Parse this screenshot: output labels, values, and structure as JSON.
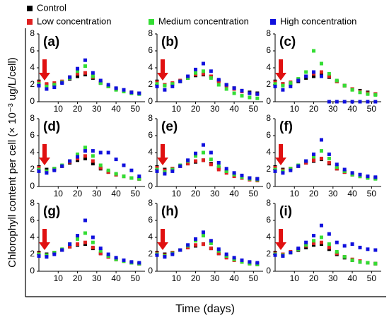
{
  "ylabel": "Chlorophyll content per cell (× 10⁻³ ug/L/cell)",
  "xlabel": "Time (days)",
  "chart_data": [
    {
      "type": "scatter",
      "label": "(a)",
      "x": [
        0,
        4,
        8,
        12,
        16,
        20,
        24,
        28,
        32,
        36,
        40,
        44,
        48,
        52
      ],
      "xlim": [
        0,
        55
      ],
      "ylim": [
        0,
        8
      ],
      "xticks": [
        10,
        20,
        30,
        40,
        50
      ],
      "yticks": [
        0,
        2,
        4,
        6,
        8
      ],
      "series": [
        {
          "name": "Control",
          "color": "#000000",
          "values": [
            2.4,
            2.0,
            2.0,
            2.3,
            2.7,
            3.0,
            3.2,
            2.8,
            2.2,
            1.8,
            1.5,
            1.3,
            1.1,
            1.0
          ]
        },
        {
          "name": "Low concentration",
          "color": "#e02020",
          "values": [
            2.3,
            2.1,
            2.2,
            2.4,
            2.9,
            3.3,
            3.4,
            2.9,
            2.3,
            1.8,
            1.5,
            1.3,
            1.1,
            1.0
          ]
        },
        {
          "name": "Medium concentration",
          "color": "#33dd33",
          "values": [
            2.1,
            1.8,
            2.0,
            2.3,
            2.8,
            3.6,
            4.2,
            3.0,
            2.2,
            1.8,
            1.4,
            1.2,
            1.0,
            0.9
          ]
        },
        {
          "name": "High concentration",
          "color": "#1010dd",
          "values": [
            1.9,
            1.5,
            1.7,
            2.2,
            2.9,
            3.9,
            4.9,
            3.4,
            2.5,
            2.0,
            1.6,
            1.4,
            1.1,
            1.0
          ]
        }
      ]
    },
    {
      "type": "scatter",
      "label": "(b)",
      "x": [
        0,
        4,
        8,
        12,
        16,
        20,
        24,
        28,
        32,
        36,
        40,
        44,
        48,
        52
      ],
      "xlim": [
        0,
        55
      ],
      "ylim": [
        0,
        8
      ],
      "xticks": [
        10,
        20,
        30,
        40,
        50
      ],
      "yticks": [
        0,
        2,
        4,
        6,
        8
      ],
      "series": [
        {
          "name": "Control",
          "color": "#000000",
          "values": [
            2.4,
            2.0,
            2.1,
            2.4,
            2.8,
            3.1,
            3.2,
            3.0,
            2.5,
            2.0,
            1.6,
            1.3,
            1.1,
            1.0
          ]
        },
        {
          "name": "Low concentration",
          "color": "#e02020",
          "values": [
            2.3,
            2.0,
            2.2,
            2.5,
            2.9,
            3.2,
            3.3,
            3.0,
            2.4,
            1.9,
            1.5,
            1.2,
            1.0,
            0.9
          ]
        },
        {
          "name": "Medium concentration",
          "color": "#33dd33",
          "values": [
            2.1,
            1.9,
            2.1,
            2.4,
            2.8,
            3.4,
            3.6,
            2.8,
            2.0,
            1.5,
            1.0,
            0.7,
            0.5,
            0.4
          ]
        },
        {
          "name": "High concentration",
          "color": "#1010dd",
          "values": [
            1.8,
            1.4,
            1.8,
            2.4,
            3.0,
            3.8,
            4.5,
            3.6,
            2.6,
            2.0,
            1.6,
            1.3,
            1.0,
            0.9
          ]
        }
      ]
    },
    {
      "type": "scatter",
      "label": "(c)",
      "x": [
        0,
        4,
        8,
        12,
        16,
        20,
        24,
        28,
        32,
        36,
        40,
        44,
        48,
        52
      ],
      "xlim": [
        0,
        55
      ],
      "ylim": [
        0,
        8
      ],
      "xticks": [
        10,
        20,
        30,
        40,
        50
      ],
      "yticks": [
        0,
        2,
        4,
        6,
        8
      ],
      "series": [
        {
          "name": "Control",
          "color": "#000000",
          "values": [
            2.4,
            2.1,
            2.1,
            2.4,
            2.8,
            3.0,
            3.2,
            2.9,
            2.4,
            1.9,
            1.5,
            1.3,
            1.1,
            0.9
          ]
        },
        {
          "name": "Low concentration",
          "color": "#e02020",
          "values": [
            2.3,
            2.1,
            2.3,
            2.6,
            3.0,
            3.3,
            3.5,
            3.0,
            2.4,
            1.9,
            1.5,
            1.2,
            1.0,
            0.9
          ]
        },
        {
          "name": "Medium concentration",
          "color": "#33dd33",
          "values": [
            2.1,
            1.9,
            2.2,
            2.7,
            3.5,
            6.0,
            4.5,
            3.3,
            2.5,
            1.9,
            1.4,
            1.1,
            0.9,
            0.8
          ]
        },
        {
          "name": "High concentration",
          "color": "#1010dd",
          "values": [
            1.8,
            1.4,
            1.8,
            2.5,
            3.0,
            3.5,
            3.0,
            0,
            0,
            0,
            0,
            0,
            0,
            0
          ]
        }
      ]
    },
    {
      "type": "scatter",
      "label": "(d)",
      "x": [
        0,
        4,
        8,
        12,
        16,
        20,
        24,
        28,
        32,
        36,
        40,
        44,
        48,
        52
      ],
      "xlim": [
        0,
        55
      ],
      "ylim": [
        0,
        8
      ],
      "xticks": [
        10,
        20,
        30,
        40,
        50
      ],
      "yticks": [
        0,
        2,
        4,
        6,
        8
      ],
      "series": [
        {
          "name": "Control",
          "color": "#000000",
          "values": [
            2.3,
            2.0,
            2.1,
            2.4,
            2.8,
            3.1,
            3.3,
            2.7,
            2.1,
            1.7,
            1.4,
            1.2,
            1.0,
            0.9
          ]
        },
        {
          "name": "Low concentration",
          "color": "#e02020",
          "values": [
            2.2,
            1.8,
            2.0,
            2.4,
            2.9,
            3.3,
            3.6,
            3.0,
            2.2,
            1.7,
            1.4,
            1.2,
            1.0,
            0.9
          ]
        },
        {
          "name": "Medium concentration",
          "color": "#33dd33",
          "values": [
            2.0,
            1.8,
            2.1,
            2.5,
            3.0,
            3.8,
            4.6,
            3.6,
            2.5,
            1.9,
            1.5,
            1.2,
            1.0,
            0.9
          ]
        },
        {
          "name": "High concentration",
          "color": "#1010dd",
          "values": [
            1.8,
            1.6,
            1.9,
            2.4,
            3.0,
            3.5,
            4.2,
            4.2,
            4.0,
            4.0,
            3.2,
            2.5,
            1.9,
            1.2
          ]
        }
      ]
    },
    {
      "type": "scatter",
      "label": "(e)",
      "x": [
        0,
        4,
        8,
        12,
        16,
        20,
        24,
        28,
        32,
        36,
        40,
        44,
        48,
        52
      ],
      "xlim": [
        0,
        55
      ],
      "ylim": [
        0,
        8
      ],
      "xticks": [
        10,
        20,
        30,
        40,
        50
      ],
      "yticks": [
        0,
        2,
        4,
        6,
        8
      ],
      "series": [
        {
          "name": "Control",
          "color": "#000000",
          "values": [
            2.3,
            2.0,
            2.1,
            2.4,
            2.7,
            2.9,
            3.1,
            2.7,
            2.2,
            1.8,
            1.4,
            1.2,
            1.0,
            0.9
          ]
        },
        {
          "name": "Low concentration",
          "color": "#e02020",
          "values": [
            2.2,
            1.9,
            2.1,
            2.4,
            2.7,
            3.0,
            3.1,
            2.6,
            2.0,
            1.6,
            1.2,
            1.0,
            0.8,
            0.7
          ]
        },
        {
          "name": "Medium concentration",
          "color": "#33dd33",
          "values": [
            2.0,
            1.7,
            2.0,
            2.5,
            3.0,
            3.6,
            4.0,
            3.2,
            2.4,
            1.8,
            1.4,
            1.1,
            0.9,
            0.8
          ]
        },
        {
          "name": "High concentration",
          "color": "#1010dd",
          "values": [
            1.8,
            1.5,
            1.8,
            2.4,
            3.1,
            3.9,
            4.9,
            4.0,
            2.8,
            2.1,
            1.6,
            1.3,
            1.0,
            0.9
          ]
        }
      ]
    },
    {
      "type": "scatter",
      "label": "(f)",
      "x": [
        0,
        4,
        8,
        12,
        16,
        20,
        24,
        28,
        32,
        36,
        40,
        44,
        48,
        52
      ],
      "xlim": [
        0,
        55
      ],
      "ylim": [
        0,
        8
      ],
      "xticks": [
        10,
        20,
        30,
        40,
        50
      ],
      "yticks": [
        0,
        2,
        4,
        6,
        8
      ],
      "series": [
        {
          "name": "Control",
          "color": "#000000",
          "values": [
            2.3,
            2.0,
            2.1,
            2.4,
            2.8,
            3.0,
            3.2,
            2.7,
            2.1,
            1.7,
            1.4,
            1.2,
            1.1,
            1.0
          ]
        },
        {
          "name": "Low concentration",
          "color": "#e02020",
          "values": [
            2.2,
            1.9,
            2.1,
            2.4,
            2.8,
            3.1,
            3.3,
            2.8,
            2.1,
            1.7,
            1.4,
            1.2,
            1.1,
            1.0
          ]
        },
        {
          "name": "Medium concentration",
          "color": "#33dd33",
          "values": [
            2.0,
            1.8,
            2.1,
            2.5,
            3.0,
            3.5,
            4.2,
            3.3,
            2.3,
            1.8,
            1.4,
            1.2,
            1.0,
            0.9
          ]
        },
        {
          "name": "High concentration",
          "color": "#1010dd",
          "values": [
            1.8,
            1.6,
            1.9,
            2.4,
            3.0,
            3.8,
            5.5,
            3.8,
            2.6,
            2.0,
            1.6,
            1.4,
            1.2,
            1.1
          ]
        }
      ]
    },
    {
      "type": "scatter",
      "label": "(g)",
      "x": [
        0,
        4,
        8,
        12,
        16,
        20,
        24,
        28,
        32,
        36,
        40,
        44,
        48,
        52
      ],
      "xlim": [
        0,
        55
      ],
      "ylim": [
        0,
        8
      ],
      "xticks": [
        10,
        20,
        30,
        40,
        50
      ],
      "yticks": [
        0,
        2,
        4,
        6,
        8
      ],
      "series": [
        {
          "name": "Control",
          "color": "#000000",
          "values": [
            2.2,
            2.0,
            2.2,
            2.5,
            2.9,
            3.1,
            3.2,
            2.7,
            2.1,
            1.7,
            1.4,
            1.2,
            1.0,
            0.9
          ]
        },
        {
          "name": "Low concentration",
          "color": "#e02020",
          "values": [
            2.1,
            1.9,
            2.2,
            2.5,
            2.9,
            3.2,
            3.4,
            2.8,
            2.1,
            1.7,
            1.4,
            1.2,
            1.0,
            0.9
          ]
        },
        {
          "name": "Medium concentration",
          "color": "#33dd33",
          "values": [
            2.0,
            1.9,
            2.2,
            2.6,
            3.2,
            3.8,
            4.5,
            3.4,
            2.4,
            1.8,
            1.4,
            1.2,
            1.0,
            0.9
          ]
        },
        {
          "name": "High concentration",
          "color": "#1010dd",
          "values": [
            1.8,
            1.7,
            2.0,
            2.5,
            3.2,
            4.2,
            6.0,
            4.0,
            2.7,
            2.0,
            1.6,
            1.3,
            1.1,
            1.0
          ]
        }
      ]
    },
    {
      "type": "scatter",
      "label": "(h)",
      "x": [
        0,
        4,
        8,
        12,
        16,
        20,
        24,
        28,
        32,
        36,
        40,
        44,
        48,
        52
      ],
      "xlim": [
        0,
        55
      ],
      "ylim": [
        0,
        8
      ],
      "xticks": [
        10,
        20,
        30,
        40,
        50
      ],
      "yticks": [
        0,
        2,
        4,
        6,
        8
      ],
      "series": [
        {
          "name": "Control",
          "color": "#000000",
          "values": [
            2.2,
            2.0,
            2.2,
            2.5,
            2.8,
            3.0,
            3.2,
            2.7,
            2.1,
            1.7,
            1.4,
            1.2,
            1.0,
            0.9
          ]
        },
        {
          "name": "Low concentration",
          "color": "#e02020",
          "values": [
            2.1,
            1.9,
            2.2,
            2.5,
            2.8,
            3.1,
            3.2,
            2.7,
            2.1,
            1.6,
            1.3,
            1.1,
            0.9,
            0.8
          ]
        },
        {
          "name": "Medium concentration",
          "color": "#33dd33",
          "values": [
            2.0,
            1.8,
            2.1,
            2.5,
            3.0,
            3.6,
            4.2,
            3.3,
            2.4,
            1.8,
            1.4,
            1.1,
            0.9,
            0.8
          ]
        },
        {
          "name": "High concentration",
          "color": "#1010dd",
          "values": [
            1.9,
            1.7,
            2.0,
            2.5,
            3.1,
            3.8,
            4.6,
            3.6,
            2.6,
            2.0,
            1.6,
            1.3,
            1.1,
            1.0
          ]
        }
      ]
    },
    {
      "type": "scatter",
      "label": "(i)",
      "x": [
        0,
        4,
        8,
        12,
        16,
        20,
        24,
        28,
        32,
        36,
        40,
        44,
        48,
        52
      ],
      "xlim": [
        0,
        55
      ],
      "ylim": [
        0,
        8
      ],
      "xticks": [
        10,
        20,
        30,
        40,
        50
      ],
      "yticks": [
        0,
        2,
        4,
        6,
        8
      ],
      "series": [
        {
          "name": "Control",
          "color": "#000000",
          "values": [
            2.2,
            2.0,
            2.2,
            2.5,
            2.8,
            3.1,
            3.2,
            2.6,
            2.0,
            1.6,
            1.3,
            1.1,
            1.0,
            0.9
          ]
        },
        {
          "name": "Low concentration",
          "color": "#e02020",
          "values": [
            2.1,
            2.0,
            2.3,
            2.6,
            3.0,
            3.3,
            3.4,
            2.8,
            2.1,
            1.7,
            1.4,
            1.2,
            1.0,
            0.9
          ]
        },
        {
          "name": "Medium concentration",
          "color": "#33dd33",
          "values": [
            2.0,
            1.9,
            2.2,
            2.6,
            3.1,
            3.6,
            4.0,
            3.2,
            2.3,
            1.7,
            1.3,
            1.1,
            1.0,
            0.9
          ]
        },
        {
          "name": "High concentration",
          "color": "#1010dd",
          "values": [
            1.9,
            1.8,
            2.2,
            2.7,
            3.4,
            4.2,
            5.4,
            4.4,
            3.4,
            3.0,
            3.2,
            2.8,
            2.6,
            2.5
          ]
        }
      ]
    }
  ]
}
